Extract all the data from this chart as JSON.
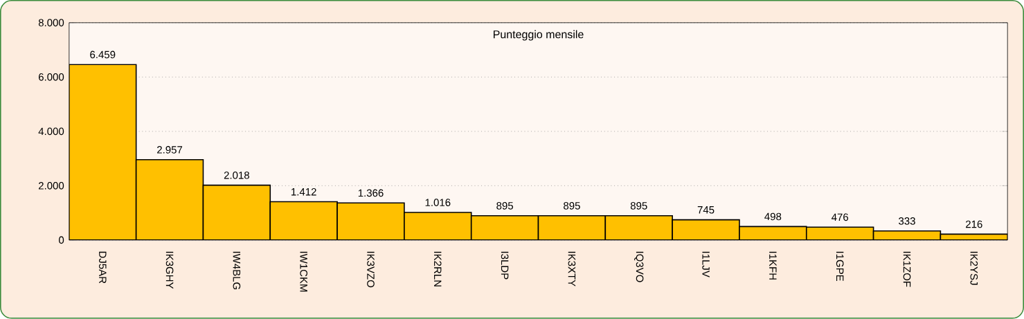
{
  "chart_data": {
    "type": "bar",
    "title": "Punteggio mensile",
    "categories": [
      "DJ5AR",
      "IK3GHY",
      "IW4BLG",
      "IW1CKM",
      "IK3VZO",
      "IK2RLN",
      "I3LDP",
      "IK3XTY",
      "IQ3VO",
      "I1LJV",
      "I1KFH",
      "I1GPE",
      "IK1ZOF",
      "IK2YSJ"
    ],
    "values": [
      6459,
      2957,
      2018,
      1412,
      1366,
      1016,
      895,
      895,
      895,
      745,
      498,
      476,
      333,
      216
    ],
    "value_labels": [
      "6.459",
      "2.957",
      "2.018",
      "1.412",
      "1.366",
      "1.016",
      "895",
      "895",
      "895",
      "745",
      "498",
      "476",
      "333",
      "216"
    ],
    "color": "#ffc000",
    "ylim": [
      0,
      8000
    ],
    "yticks": [
      {
        "value": 0,
        "label": "0"
      },
      {
        "value": 2000,
        "label": "2.000"
      },
      {
        "value": 4000,
        "label": "4.000"
      },
      {
        "value": 6000,
        "label": "6.000"
      },
      {
        "value": 8000,
        "label": "8.000"
      }
    ],
    "grid": "y"
  }
}
